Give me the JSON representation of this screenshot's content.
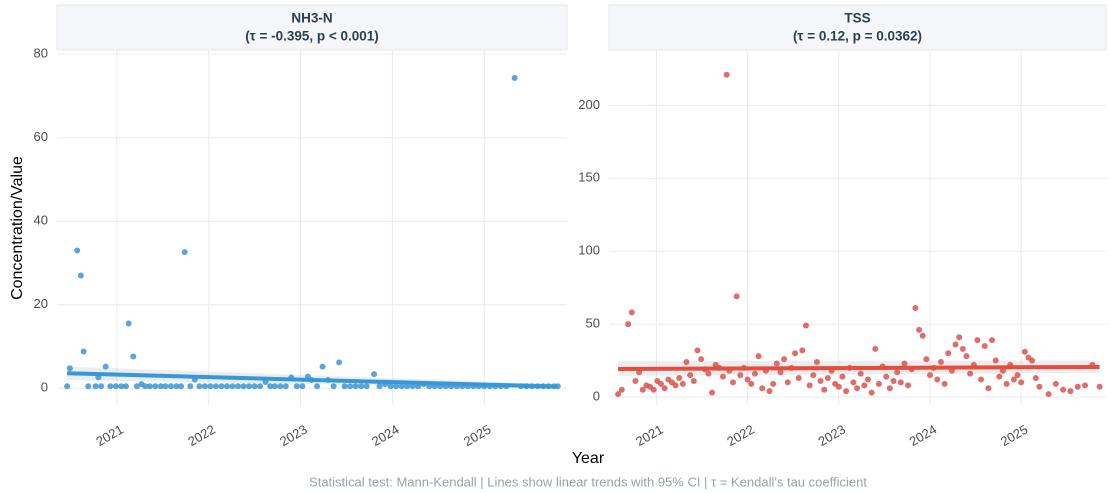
{
  "ylabel": "Concentration/Value",
  "xlabel": "Year",
  "caption": "Statistical test: Mann-Kendall | Lines show linear trends with 95% CI | τ = Kendall's tau coefficient",
  "chart_data": [
    {
      "type": "scatter",
      "title": "NH3-N",
      "subtitle": "(τ = -0.395, p < 0.001)",
      "color": "#3d95d5",
      "grid": true,
      "xlim": [
        2020.35,
        2025.9
      ],
      "xticks": [
        2021,
        2022,
        2023,
        2024,
        2025
      ],
      "ylim": [
        -4,
        81
      ],
      "yticks": [
        0,
        20,
        40,
        60,
        80
      ],
      "x": [
        2020.46,
        2020.49,
        2020.57,
        2020.61,
        2020.64,
        2020.69,
        2020.77,
        2020.8,
        2020.83,
        2020.88,
        2020.93,
        2020.99,
        2021.05,
        2021.1,
        2021.13,
        2021.18,
        2021.22,
        2021.27,
        2021.31,
        2021.36,
        2021.42,
        2021.48,
        2021.53,
        2021.59,
        2021.65,
        2021.7,
        2021.74,
        2021.8,
        2021.85,
        2021.9,
        2021.96,
        2022.02,
        2022.08,
        2022.14,
        2022.2,
        2022.26,
        2022.32,
        2022.38,
        2022.44,
        2022.5,
        2022.56,
        2022.62,
        2022.67,
        2022.72,
        2022.78,
        2022.84,
        2022.9,
        2022.96,
        2023.02,
        2023.08,
        2023.12,
        2023.18,
        2023.24,
        2023.3,
        2023.36,
        2023.42,
        2023.48,
        2023.54,
        2023.6,
        2023.66,
        2023.72,
        2023.8,
        2023.86,
        2023.92,
        2023.98,
        2024.04,
        2024.1,
        2024.16,
        2024.22,
        2024.28,
        2024.34,
        2024.4,
        2024.46,
        2024.52,
        2024.58,
        2024.64,
        2024.7,
        2024.76,
        2024.82,
        2024.88,
        2024.94,
        2025.0,
        2025.06,
        2025.12,
        2025.18,
        2025.24,
        2025.33,
        2025.4,
        2025.46,
        2025.52,
        2025.58,
        2025.64,
        2025.7,
        2025.76,
        2025.8
      ],
      "values": [
        0.5,
        4.8,
        33,
        27,
        8.8,
        0.5,
        0.5,
        2.6,
        0.5,
        5.2,
        0.5,
        0.5,
        0.5,
        0.5,
        15.5,
        7.6,
        0.5,
        1.0,
        0.5,
        0.5,
        0.5,
        0.5,
        0.5,
        0.5,
        0.5,
        0.5,
        32.6,
        0.5,
        2.1,
        0.5,
        0.5,
        0.5,
        0.5,
        0.5,
        0.5,
        0.5,
        0.5,
        0.5,
        0.5,
        0.5,
        0.5,
        1.5,
        0.5,
        0.5,
        0.5,
        0.5,
        2.6,
        0.5,
        0.5,
        2.8,
        2.0,
        0.5,
        5.2,
        2.0,
        0.5,
        6.2,
        0.5,
        0.5,
        0.5,
        0.5,
        0.5,
        3.4,
        0.5,
        1.0,
        0.5,
        0.5,
        0.5,
        0.5,
        0.5,
        0.5,
        1.0,
        0.5,
        0.5,
        0.5,
        0.5,
        0.5,
        0.5,
        0.5,
        0.5,
        0.5,
        0.5,
        0.5,
        0.5,
        0.5,
        0.5,
        0.5,
        74.3,
        0.5,
        0.5,
        0.5,
        0.5,
        0.5,
        0.5,
        0.5,
        0.5
      ],
      "trend": {
        "color": "#3498db",
        "x": [
          2020.46,
          2025.8
        ],
        "values": [
          3.6,
          0.4
        ],
        "lower": [
          2.0,
          0.0
        ],
        "upper": [
          5.2,
          1.0
        ]
      }
    },
    {
      "type": "scatter",
      "title": "TSS",
      "subtitle": "(τ = 0.12, p = 0.0362)",
      "color": "#d9534f",
      "grid": true,
      "xlim": [
        2020.48,
        2025.93
      ],
      "xticks": [
        2021,
        2022,
        2023,
        2024,
        2025
      ],
      "ylim": [
        -5.5,
        238
      ],
      "yticks": [
        0,
        50,
        100,
        150,
        200
      ],
      "x": [
        2020.58,
        2020.62,
        2020.69,
        2020.73,
        2020.77,
        2020.81,
        2020.85,
        2020.89,
        2020.93,
        2020.97,
        2021.01,
        2021.05,
        2021.09,
        2021.13,
        2021.17,
        2021.21,
        2021.25,
        2021.29,
        2021.33,
        2021.37,
        2021.41,
        2021.45,
        2021.49,
        2021.53,
        2021.57,
        2021.61,
        2021.65,
        2021.69,
        2021.73,
        2021.77,
        2021.8,
        2021.84,
        2021.88,
        2021.92,
        2021.96,
        2022.0,
        2022.04,
        2022.08,
        2022.12,
        2022.16,
        2022.2,
        2022.24,
        2022.28,
        2022.32,
        2022.36,
        2022.4,
        2022.44,
        2022.48,
        2022.52,
        2022.56,
        2022.6,
        2022.64,
        2022.68,
        2022.72,
        2022.76,
        2022.8,
        2022.84,
        2022.88,
        2022.92,
        2022.96,
        2023.0,
        2023.04,
        2023.08,
        2023.12,
        2023.16,
        2023.2,
        2023.24,
        2023.28,
        2023.32,
        2023.36,
        2023.4,
        2023.44,
        2023.48,
        2023.52,
        2023.56,
        2023.6,
        2023.64,
        2023.68,
        2023.72,
        2023.76,
        2023.8,
        2023.84,
        2023.88,
        2023.92,
        2023.96,
        2024.0,
        2024.04,
        2024.08,
        2024.12,
        2024.16,
        2024.2,
        2024.24,
        2024.28,
        2024.32,
        2024.36,
        2024.4,
        2024.44,
        2024.48,
        2024.52,
        2024.56,
        2024.6,
        2024.64,
        2024.68,
        2024.72,
        2024.76,
        2024.8,
        2024.84,
        2024.88,
        2024.92,
        2024.96,
        2025.0,
        2025.04,
        2025.08,
        2025.12,
        2025.16,
        2025.2,
        2025.3,
        2025.38,
        2025.46,
        2025.54,
        2025.62,
        2025.7,
        2025.78,
        2025.86
      ],
      "values": [
        2,
        5,
        50,
        58,
        11,
        17,
        5,
        8,
        7,
        5,
        11,
        9,
        6,
        12,
        10,
        8,
        13,
        9,
        24,
        15,
        11,
        32,
        26,
        19,
        16,
        3,
        22,
        20,
        14,
        221,
        18,
        10,
        69,
        15,
        20,
        12,
        9,
        16,
        28,
        6,
        18,
        4,
        9,
        23,
        17,
        26,
        10,
        20,
        30,
        13,
        32,
        49,
        8,
        15,
        24,
        11,
        5,
        13,
        18,
        9,
        7,
        14,
        4,
        20,
        10,
        6,
        16,
        8,
        12,
        3,
        33,
        9,
        21,
        14,
        6,
        11,
        17,
        10,
        23,
        8,
        19,
        61,
        46,
        42,
        26,
        15,
        20,
        12,
        24,
        9,
        30,
        18,
        36,
        41,
        33,
        28,
        16,
        22,
        39,
        12,
        35,
        6,
        39,
        25,
        14,
        18,
        9,
        22,
        12,
        15,
        10,
        31,
        27,
        25,
        13,
        7,
        2,
        9,
        5,
        4,
        7,
        8,
        22,
        7
      ],
      "trend": {
        "color": "#e74c3c",
        "x": [
          2020.58,
          2025.86
        ],
        "values": [
          19.2,
          20.6
        ],
        "lower": [
          14.5,
          16.5
        ],
        "upper": [
          24.5,
          25.0
        ]
      }
    }
  ]
}
